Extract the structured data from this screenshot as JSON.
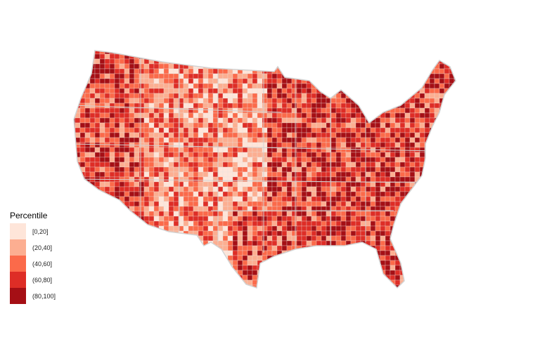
{
  "legend": {
    "title": "Percentile",
    "items": [
      {
        "label": "[0,20]",
        "color": "#FEE5D9"
      },
      {
        "label": "(20,40]",
        "color": "#FCAE91"
      },
      {
        "label": "(40,60]",
        "color": "#FB6A4A"
      },
      {
        "label": "(60,80]",
        "color": "#DE2D26"
      },
      {
        "label": "(80,100]",
        "color": "#A50F15"
      }
    ]
  },
  "map": {
    "region": "Contiguous United States counties",
    "border_color": "#D3D3D3"
  }
}
